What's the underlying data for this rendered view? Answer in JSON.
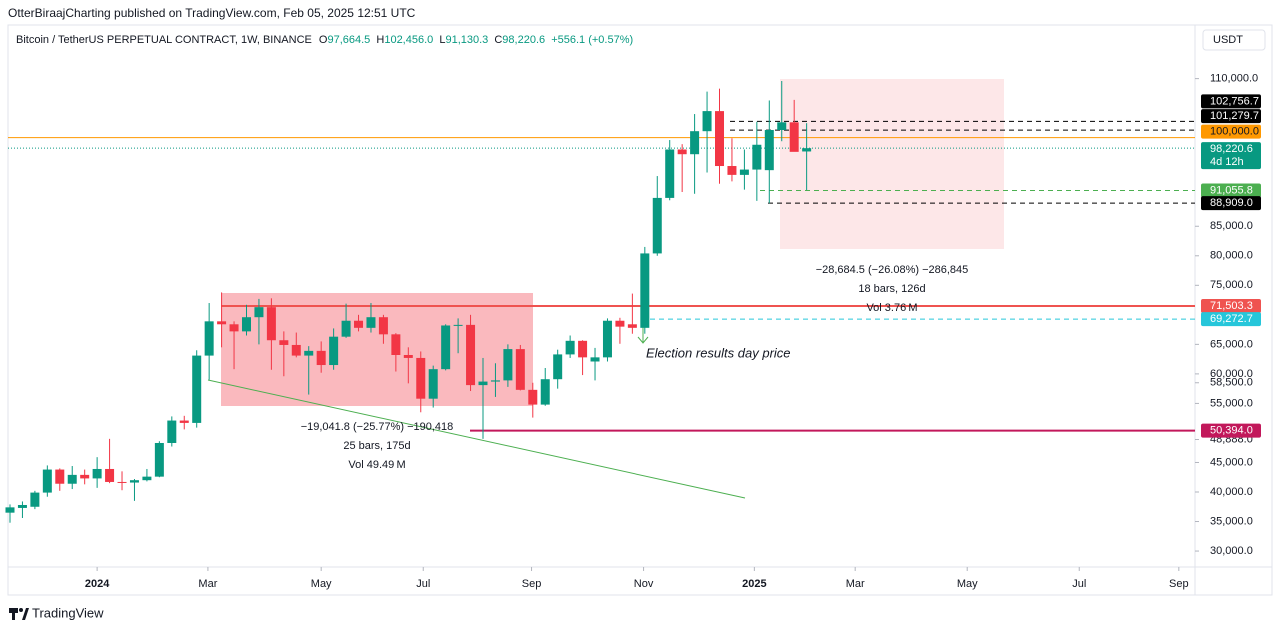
{
  "header": {
    "publisher": "OtterBiraajCharting published on TradingView.com, Feb 05, 2025 12:51 UTC",
    "symbol": "Bitcoin / TetherUS PERPETUAL CONTRACT, 1W, BINANCE",
    "ohlc": [
      {
        "key": "O",
        "value": "97,664.5"
      },
      {
        "key": "H",
        "value": "102,456.0"
      },
      {
        "key": "L",
        "value": "91,130.3"
      },
      {
        "key": "C",
        "value": "98,220.6"
      }
    ],
    "change": "+556.1 (+0.57%)",
    "currency": "USDT"
  },
  "footer": {
    "brand": "TradingView"
  },
  "chart_data": {
    "type": "candlestick",
    "up_color": "#089981",
    "down_color": "#f23645",
    "grid": false,
    "xlim": [
      -0.16,
      95.2
    ],
    "ylim": [
      27300,
      114000
    ],
    "xticks": [
      {
        "value": 7.0,
        "label": "2024"
      },
      {
        "value": 15.9,
        "label": "Mar"
      },
      {
        "value": 25.0,
        "label": "May"
      },
      {
        "value": 33.2,
        "label": "Jul"
      },
      {
        "value": 41.9,
        "label": "Sep"
      },
      {
        "value": 50.9,
        "label": "Nov"
      },
      {
        "value": 59.8,
        "label": "2025"
      },
      {
        "value": 67.9,
        "label": "Mar"
      },
      {
        "value": 76.9,
        "label": "May"
      },
      {
        "value": 85.9,
        "label": "Jul"
      },
      {
        "value": 93.9,
        "label": "Sep"
      }
    ],
    "yticks": [
      {
        "value": 110000,
        "label": "110,000.0"
      },
      {
        "value": 85000,
        "label": "85,000.0"
      },
      {
        "value": 80000,
        "label": "80,000.0"
      },
      {
        "value": 75000,
        "label": "75,000.0"
      },
      {
        "value": 65000,
        "label": "65,000.0"
      },
      {
        "value": 60000,
        "label": "60,000.0"
      },
      {
        "value": 55000,
        "label": "55,000.0"
      },
      {
        "value": 45000,
        "label": "45,000.0"
      },
      {
        "value": 40000,
        "label": "40,000.0"
      },
      {
        "value": 35000,
        "label": "35,000.0"
      },
      {
        "value": 30000,
        "label": "30,000.0"
      }
    ],
    "axis_marks": [
      {
        "value": 58500,
        "label": "58,500.0"
      },
      {
        "value": 48888,
        "label": "48,888.0"
      }
    ],
    "levels": [
      {
        "value": 102756.7,
        "label": "102,756.7",
        "color": "#000000",
        "style": "dashed"
      },
      {
        "value": 101279.7,
        "label": "101,279.7",
        "color": "#000000",
        "style": "dashed"
      },
      {
        "value": 100000,
        "label": "100,000.0",
        "color": "#ff9800",
        "style": "solid"
      },
      {
        "value": 98220.6,
        "label": "98,220.6",
        "color": "#089981",
        "style": "dotted",
        "countdown": "4d 12h"
      },
      {
        "value": 91055.8,
        "label": "91,055.8",
        "color": "#4caf50",
        "style": "dashed"
      },
      {
        "value": 88909.0,
        "label": "88,909.0",
        "color": "#000000",
        "style": "dashed"
      },
      {
        "value": 71503.3,
        "label": "71,503.3",
        "color": "#ef5350",
        "style": "solid"
      },
      {
        "value": 69272.7,
        "label": "69,272.7",
        "color": "#26c6da",
        "style": "dashed"
      },
      {
        "value": 50394.0,
        "label": "50,394.0",
        "color": "#c2185b",
        "style": "solid"
      }
    ],
    "measures": [
      [
        "−19,041.8 (−25.77%) −190,418",
        "25 bars, 175d",
        "Vol 49.49 M"
      ],
      [
        "−28,684.5 (−26.08%) −286,845",
        "18 bars, 126d",
        "Vol 3.76 M"
      ]
    ],
    "annotation": "Election results day price",
    "candles": [
      {
        "open": 36500,
        "high": 37900,
        "low": 34800,
        "close": 37400
      },
      {
        "open": 37300,
        "high": 38400,
        "low": 35600,
        "close": 37800
      },
      {
        "open": 37500,
        "high": 40200,
        "low": 37100,
        "close": 39900
      },
      {
        "open": 39900,
        "high": 44500,
        "low": 39200,
        "close": 43800
      },
      {
        "open": 43800,
        "high": 44000,
        "low": 40200,
        "close": 41400
      },
      {
        "open": 41400,
        "high": 44400,
        "low": 40500,
        "close": 42900
      },
      {
        "open": 42900,
        "high": 43800,
        "low": 41300,
        "close": 42300
      },
      {
        "open": 42300,
        "high": 45900,
        "low": 40700,
        "close": 43900
      },
      {
        "open": 43900,
        "high": 49000,
        "low": 41500,
        "close": 41700
      },
      {
        "open": 41700,
        "high": 43500,
        "low": 40300,
        "close": 41600
      },
      {
        "open": 41600,
        "high": 42200,
        "low": 38500,
        "close": 42000
      },
      {
        "open": 42000,
        "high": 43900,
        "low": 41800,
        "close": 42600
      },
      {
        "open": 42600,
        "high": 48600,
        "low": 42500,
        "close": 48300
      },
      {
        "open": 48300,
        "high": 52800,
        "low": 47700,
        "close": 52100
      },
      {
        "open": 52100,
        "high": 52900,
        "low": 50600,
        "close": 51700
      },
      {
        "open": 51700,
        "high": 64000,
        "low": 50900,
        "close": 63100
      },
      {
        "open": 63100,
        "high": 72000,
        "low": 59000,
        "close": 68900
      },
      {
        "open": 68900,
        "high": 73800,
        "low": 64500,
        "close": 68400
      },
      {
        "open": 68400,
        "high": 68900,
        "low": 60800,
        "close": 67200
      },
      {
        "open": 67200,
        "high": 71700,
        "low": 66500,
        "close": 69600
      },
      {
        "open": 69600,
        "high": 72700,
        "low": 65000,
        "close": 71300
      },
      {
        "open": 71300,
        "high": 72800,
        "low": 60700,
        "close": 65700
      },
      {
        "open": 65700,
        "high": 67200,
        "low": 59600,
        "close": 64900
      },
      {
        "open": 64900,
        "high": 67000,
        "low": 62800,
        "close": 63100
      },
      {
        "open": 63100,
        "high": 64700,
        "low": 56500,
        "close": 63900
      },
      {
        "open": 63900,
        "high": 65500,
        "low": 60200,
        "close": 61500
      },
      {
        "open": 61500,
        "high": 67700,
        "low": 60700,
        "close": 66300
      },
      {
        "open": 66300,
        "high": 71900,
        "low": 66100,
        "close": 69000
      },
      {
        "open": 69000,
        "high": 70000,
        "low": 67200,
        "close": 67800
      },
      {
        "open": 67800,
        "high": 72000,
        "low": 67000,
        "close": 69600
      },
      {
        "open": 69600,
        "high": 70000,
        "low": 65100,
        "close": 66700
      },
      {
        "open": 66700,
        "high": 66900,
        "low": 60400,
        "close": 63200
      },
      {
        "open": 63200,
        "high": 64500,
        "low": 58400,
        "close": 62700
      },
      {
        "open": 62700,
        "high": 63800,
        "low": 53500,
        "close": 55800
      },
      {
        "open": 55800,
        "high": 61400,
        "low": 54300,
        "close": 60800
      },
      {
        "open": 60800,
        "high": 68400,
        "low": 60600,
        "close": 68200
      },
      {
        "open": 68200,
        "high": 69400,
        "low": 63500,
        "close": 68300
      },
      {
        "open": 68300,
        "high": 70000,
        "low": 57100,
        "close": 58100
      },
      {
        "open": 58100,
        "high": 62700,
        "low": 49000,
        "close": 58700
      },
      {
        "open": 58700,
        "high": 61800,
        "low": 56100,
        "close": 58900
      },
      {
        "open": 58900,
        "high": 65000,
        "low": 57800,
        "close": 64200
      },
      {
        "open": 64200,
        "high": 64900,
        "low": 57200,
        "close": 57300
      },
      {
        "open": 57300,
        "high": 58500,
        "low": 52600,
        "close": 54800
      },
      {
        "open": 54800,
        "high": 61000,
        "low": 54600,
        "close": 59100
      },
      {
        "open": 59100,
        "high": 64100,
        "low": 57500,
        "close": 63300
      },
      {
        "open": 63300,
        "high": 66500,
        "low": 62700,
        "close": 65600
      },
      {
        "open": 65600,
        "high": 65700,
        "low": 59800,
        "close": 62800
      },
      {
        "open": 62100,
        "high": 64400,
        "low": 58900,
        "close": 62800
      },
      {
        "open": 62800,
        "high": 69400,
        "low": 62100,
        "close": 69000
      },
      {
        "open": 69000,
        "high": 69500,
        "low": 65100,
        "close": 68000
      },
      {
        "open": 68400,
        "high": 73600,
        "low": 66800,
        "close": 67800
      },
      {
        "open": 67800,
        "high": 81500,
        "low": 66800,
        "close": 80400
      },
      {
        "open": 80400,
        "high": 93500,
        "low": 80000,
        "close": 89800
      },
      {
        "open": 89800,
        "high": 99600,
        "low": 89400,
        "close": 98000
      },
      {
        "open": 98000,
        "high": 98900,
        "low": 90800,
        "close": 97200
      },
      {
        "open": 97200,
        "high": 104000,
        "low": 90500,
        "close": 101100
      },
      {
        "open": 101100,
        "high": 107800,
        "low": 94100,
        "close": 104500
      },
      {
        "open": 104500,
        "high": 108300,
        "low": 92200,
        "close": 95200
      },
      {
        "open": 95200,
        "high": 99900,
        "low": 92600,
        "close": 93700
      },
      {
        "open": 93700,
        "high": 98000,
        "low": 91200,
        "close": 94600
      },
      {
        "open": 94600,
        "high": 102700,
        "low": 89300,
        "close": 98800
      },
      {
        "open": 94500,
        "high": 106300,
        "low": 88900,
        "close": 101300
      },
      {
        "open": 101300,
        "high": 109600,
        "low": 99400,
        "close": 102600
      },
      {
        "open": 102600,
        "high": 106400,
        "low": 97800,
        "close": 97600
      },
      {
        "open": 97664.5,
        "high": 102456.0,
        "low": 91130.3,
        "close": 98220.6
      }
    ]
  }
}
